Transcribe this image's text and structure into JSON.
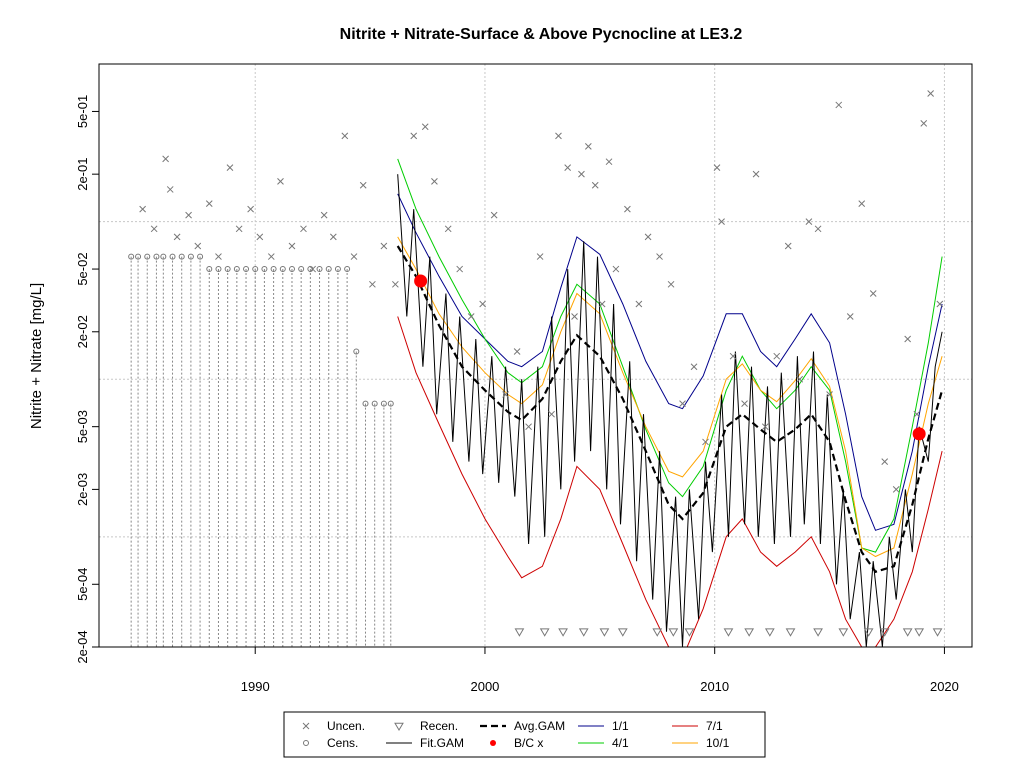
{
  "chart_data": {
    "type": "scatter",
    "title": "Nitrite + Nitrate-Surface & Above Pycnocline at LE3.2",
    "ylabel": "Nitrite + Nitrate [mg/L]",
    "xlabel": "",
    "y_scale": "log",
    "xlim": [
      1983.2,
      2021.2
    ],
    "ylim": [
      0.0002,
      1.0
    ],
    "x_ticks": [
      1990,
      2000,
      2010,
      2020
    ],
    "x_tick_labels": [
      "1990",
      "2000",
      "2010",
      "2020"
    ],
    "y_ticks": [
      0.0002,
      0.0005,
      0.002,
      0.005,
      0.02,
      0.05,
      0.2,
      0.5
    ],
    "y_tick_labels": [
      "2e-04",
      "5e-04",
      "2e-03",
      "5e-03",
      "2e-02",
      "5e-02",
      "2e-01",
      "5e-01"
    ],
    "y_grid": [
      0.001,
      0.01,
      0.1
    ],
    "x_grid": [
      1990,
      2000,
      2010,
      2020
    ],
    "grid": true,
    "legend_position": "bottom",
    "legend": [
      {
        "label": "Uncen.",
        "symbol": "x",
        "color": "#777777"
      },
      {
        "label": "Cens.",
        "symbol": "circle",
        "color": "#777777"
      },
      {
        "label": "Recen.",
        "symbol": "triangle-down",
        "color": "#777777"
      },
      {
        "label": "Fit.GAM",
        "symbol": "line",
        "color": "#000000"
      },
      {
        "label": "Avg.GAM",
        "symbol": "dashed",
        "color": "#000000"
      },
      {
        "label": "B/C x",
        "symbol": "dot",
        "color": "#ff0000"
      },
      {
        "label": "1/1",
        "symbol": "line",
        "color": "#00008b"
      },
      {
        "label": "4/1",
        "symbol": "line",
        "color": "#00cd00"
      },
      {
        "label": "7/1",
        "symbol": "line",
        "color": "#cd0000"
      },
      {
        "label": "10/1",
        "symbol": "line",
        "color": "#ffa500"
      }
    ],
    "series": [
      {
        "name": "Avg.GAM",
        "color": "#000000",
        "style": "dashed",
        "x": [
          1996.2,
          1997.0,
          1998.0,
          1999.0,
          2000.0,
          2001.0,
          2001.6,
          2002.5,
          2003.3,
          2004.0,
          2005.0,
          2006.0,
          2007.0,
          2008.0,
          2008.6,
          2009.5,
          2010.5,
          2011.2,
          2012.0,
          2012.7,
          2013.5,
          2014.2,
          2015.0,
          2015.7,
          2016.4,
          2017.0,
          2017.8,
          2018.6,
          2019.3,
          2019.9
        ],
        "y": [
          0.07,
          0.045,
          0.022,
          0.012,
          0.0085,
          0.0062,
          0.0055,
          0.0075,
          0.013,
          0.019,
          0.014,
          0.0075,
          0.0035,
          0.0016,
          0.0013,
          0.0019,
          0.005,
          0.006,
          0.0048,
          0.004,
          0.0048,
          0.006,
          0.004,
          0.0017,
          0.0008,
          0.0006,
          0.00065,
          0.0016,
          0.0042,
          0.0085
        ]
      },
      {
        "name": "1/1",
        "color": "#00008b",
        "style": "solid",
        "x": [
          1996.2,
          1997.0,
          1998.0,
          1999.0,
          2000.0,
          2001.0,
          2001.6,
          2002.5,
          2003.3,
          2004.0,
          2005.0,
          2006.0,
          2007.0,
          2008.0,
          2008.6,
          2009.5,
          2010.5,
          2011.2,
          2012.0,
          2012.7,
          2013.5,
          2014.2,
          2015.0,
          2015.7,
          2016.4,
          2017.0,
          2017.8,
          2018.6,
          2019.3,
          2019.9
        ],
        "y": [
          0.15,
          0.085,
          0.045,
          0.025,
          0.018,
          0.013,
          0.012,
          0.015,
          0.038,
          0.08,
          0.062,
          0.03,
          0.013,
          0.007,
          0.0065,
          0.0105,
          0.026,
          0.026,
          0.015,
          0.012,
          0.018,
          0.026,
          0.017,
          0.006,
          0.0018,
          0.0011,
          0.0012,
          0.0035,
          0.012,
          0.03
        ]
      },
      {
        "name": "4/1",
        "color": "#00cd00",
        "style": "solid",
        "x": [
          1996.2,
          1997.0,
          1998.0,
          1999.0,
          2000.0,
          2001.0,
          2001.6,
          2002.5,
          2003.3,
          2004.0,
          2005.0,
          2006.0,
          2007.0,
          2008.0,
          2008.6,
          2009.5,
          2010.5,
          2011.2,
          2012.0,
          2012.7,
          2013.5,
          2014.2,
          2015.0,
          2015.7,
          2016.4,
          2017.0,
          2017.8,
          2018.6,
          2019.3,
          2019.9
        ],
        "y": [
          0.25,
          0.12,
          0.06,
          0.032,
          0.018,
          0.011,
          0.0095,
          0.012,
          0.025,
          0.04,
          0.03,
          0.012,
          0.0048,
          0.0022,
          0.0018,
          0.0028,
          0.0085,
          0.014,
          0.0085,
          0.0065,
          0.0085,
          0.012,
          0.0085,
          0.003,
          0.00085,
          0.0008,
          0.0013,
          0.005,
          0.017,
          0.06
        ]
      },
      {
        "name": "7/1",
        "color": "#cd0000",
        "style": "solid",
        "x": [
          1996.2,
          1997.0,
          1998.0,
          1999.0,
          2000.0,
          2001.0,
          2001.6,
          2002.5,
          2003.3,
          2004.0,
          2005.0,
          2006.0,
          2007.0,
          2008.0,
          2008.6,
          2009.5,
          2010.5,
          2011.2,
          2012.0,
          2012.7,
          2013.5,
          2014.2,
          2015.0,
          2015.7,
          2016.4,
          2017.0,
          2017.8,
          2018.6,
          2019.3,
          2019.9
        ],
        "y": [
          0.025,
          0.011,
          0.0052,
          0.0025,
          0.0013,
          0.00075,
          0.00055,
          0.00065,
          0.0013,
          0.0028,
          0.002,
          0.0009,
          0.0004,
          0.0002,
          0.00017,
          0.00035,
          0.001,
          0.0013,
          0.0008,
          0.00065,
          0.0008,
          0.001,
          0.0006,
          0.0003,
          0.0002,
          0.0002,
          0.0003,
          0.0006,
          0.0015,
          0.0035
        ]
      },
      {
        "name": "10/1",
        "color": "#ffa500",
        "style": "solid",
        "x": [
          1996.2,
          1997.0,
          1998.0,
          1999.0,
          2000.0,
          2001.0,
          2001.6,
          2002.5,
          2003.3,
          2004.0,
          2005.0,
          2006.0,
          2007.0,
          2008.0,
          2008.6,
          2009.5,
          2010.5,
          2011.2,
          2012.0,
          2012.7,
          2013.5,
          2014.2,
          2015.0,
          2015.7,
          2016.4,
          2017.0,
          2017.8,
          2018.6,
          2019.3,
          2019.9
        ],
        "y": [
          0.08,
          0.05,
          0.026,
          0.016,
          0.011,
          0.008,
          0.007,
          0.0092,
          0.02,
          0.035,
          0.026,
          0.011,
          0.005,
          0.0026,
          0.0024,
          0.0035,
          0.01,
          0.0125,
          0.0085,
          0.0072,
          0.0098,
          0.0135,
          0.009,
          0.0035,
          0.00085,
          0.00075,
          0.00085,
          0.0025,
          0.007,
          0.014
        ]
      },
      {
        "name": "Fit.GAM",
        "color": "#000000",
        "style": "solid",
        "x": [
          1996.2,
          1996.6,
          1996.9,
          1997.3,
          1997.6,
          1997.9,
          1998.3,
          1998.6,
          1998.9,
          1999.3,
          1999.6,
          1999.9,
          2000.3,
          2000.6,
          2000.9,
          2001.3,
          2001.6,
          2001.9,
          2002.3,
          2002.6,
          2002.9,
          2003.3,
          2003.6,
          2003.9,
          2004.3,
          2004.6,
          2004.9,
          2005.3,
          2005.6,
          2005.9,
          2006.3,
          2006.6,
          2006.9,
          2007.3,
          2007.6,
          2007.9,
          2008.3,
          2008.6,
          2008.9,
          2009.3,
          2009.6,
          2009.9,
          2010.3,
          2010.6,
          2010.9,
          2011.3,
          2011.6,
          2011.9,
          2012.3,
          2012.6,
          2012.9,
          2013.3,
          2013.6,
          2013.9,
          2014.3,
          2014.6,
          2014.9,
          2015.3,
          2015.6,
          2015.9,
          2016.3,
          2016.6,
          2016.9,
          2017.3,
          2017.6,
          2017.9,
          2018.3,
          2018.6,
          2018.9,
          2019.3,
          2019.6,
          2019.9
        ],
        "y": [
          0.2,
          0.025,
          0.12,
          0.012,
          0.06,
          0.006,
          0.035,
          0.004,
          0.025,
          0.003,
          0.018,
          0.0025,
          0.014,
          0.0022,
          0.012,
          0.0018,
          0.01,
          0.0009,
          0.012,
          0.001,
          0.025,
          0.002,
          0.05,
          0.003,
          0.075,
          0.0035,
          0.06,
          0.002,
          0.03,
          0.0012,
          0.013,
          0.0007,
          0.006,
          0.0004,
          0.0035,
          0.00025,
          0.0018,
          0.0002,
          0.002,
          0.0003,
          0.003,
          0.0008,
          0.008,
          0.001,
          0.015,
          0.0012,
          0.012,
          0.001,
          0.009,
          0.0009,
          0.011,
          0.001,
          0.014,
          0.0012,
          0.015,
          0.0009,
          0.008,
          0.0005,
          0.002,
          0.0003,
          0.0008,
          0.0002,
          0.0007,
          0.0002,
          0.001,
          0.0004,
          0.002,
          0.0008,
          0.005,
          0.003,
          0.012,
          0.02
        ]
      },
      {
        "name": "Uncen.",
        "color": "#777777",
        "style": "x",
        "x": [
          1985.1,
          1985.6,
          1986.1,
          1986.3,
          1986.6,
          1987.1,
          1987.5,
          1988.0,
          1988.4,
          1988.9,
          1989.3,
          1989.8,
          1990.2,
          1990.7,
          1991.1,
          1991.6,
          1992.1,
          1992.5,
          1993.0,
          1993.4,
          1993.9,
          1994.3,
          1994.7,
          1995.1,
          1995.6,
          1996.1,
          1996.9,
          1997.4,
          1997.8,
          1998.4,
          1998.9,
          1999.4,
          1999.9,
          2000.4,
          2000.9,
          2001.4,
          2001.9,
          2002.4,
          2002.9,
          2003.2,
          2003.6,
          2003.9,
          2004.2,
          2004.5,
          2004.8,
          2005.1,
          2005.4,
          2005.7,
          2006.2,
          2006.7,
          2007.1,
          2007.6,
          2008.1,
          2008.6,
          2009.1,
          2009.6,
          2010.1,
          2010.3,
          2010.8,
          2011.3,
          2011.8,
          2012.2,
          2012.7,
          2013.2,
          2013.7,
          2014.1,
          2014.5,
          2015.0,
          2015.4,
          2015.9,
          2016.4,
          2016.9,
          2017.4,
          2017.9,
          2018.4,
          2018.8,
          2019.1,
          2019.4,
          2019.8
        ],
        "y": [
          0.12,
          0.09,
          0.25,
          0.16,
          0.08,
          0.11,
          0.07,
          0.13,
          0.06,
          0.22,
          0.09,
          0.12,
          0.08,
          0.06,
          0.18,
          0.07,
          0.09,
          0.05,
          0.11,
          0.08,
          0.35,
          0.06,
          0.17,
          0.04,
          0.07,
          0.04,
          0.35,
          0.4,
          0.18,
          0.09,
          0.05,
          0.025,
          0.03,
          0.11,
          0.008,
          0.015,
          0.005,
          0.06,
          0.006,
          0.35,
          0.22,
          0.025,
          0.2,
          0.3,
          0.17,
          0.03,
          0.24,
          0.05,
          0.12,
          0.03,
          0.08,
          0.06,
          0.04,
          0.007,
          0.012,
          0.004,
          0.22,
          0.1,
          0.014,
          0.007,
          0.2,
          0.005,
          0.014,
          0.07,
          0.01,
          0.1,
          0.09,
          0.008,
          0.55,
          0.025,
          0.13,
          0.035,
          0.003,
          0.002,
          0.018,
          0.006,
          0.42,
          0.65,
          0.03
        ]
      },
      {
        "name": "Cens.",
        "color": "#777777",
        "style": "circle",
        "x": [
          1984.6,
          1984.9,
          1985.3,
          1985.7,
          1986.0,
          1986.4,
          1986.8,
          1987.2,
          1987.6,
          1988.0,
          1988.4,
          1988.8,
          1989.2,
          1989.6,
          1990.0,
          1990.4,
          1990.8,
          1991.2,
          1991.6,
          1992.0,
          1992.4,
          1992.8,
          1993.2,
          1993.6,
          1994.0,
          1994.4,
          1994.8,
          1995.2,
          1995.6,
          1995.9
        ],
        "y": [
          0.06,
          0.06,
          0.06,
          0.06,
          0.06,
          0.06,
          0.06,
          0.06,
          0.06,
          0.05,
          0.05,
          0.05,
          0.05,
          0.05,
          0.05,
          0.05,
          0.05,
          0.05,
          0.05,
          0.05,
          0.05,
          0.05,
          0.05,
          0.05,
          0.05,
          0.015,
          0.007,
          0.007,
          0.007,
          0.007
        ]
      },
      {
        "name": "Recen.",
        "color": "#777777",
        "style": "triangle",
        "x": [
          2001.5,
          2002.6,
          2003.4,
          2004.3,
          2005.2,
          2006.0,
          2007.5,
          2008.2,
          2008.9,
          2010.6,
          2011.5,
          2012.4,
          2013.3,
          2014.5,
          2015.6,
          2016.7,
          2017.4,
          2018.4,
          2018.9,
          2019.7
        ],
        "y": [
          0.00025,
          0.00025,
          0.00025,
          0.00025,
          0.00025,
          0.00025,
          0.00025,
          0.00025,
          0.00025,
          0.00025,
          0.00025,
          0.00025,
          0.00025,
          0.00025,
          0.00025,
          0.00025,
          0.00025,
          0.00025,
          0.00025,
          0.00025
        ]
      },
      {
        "name": "B/C x",
        "color": "#ff0000",
        "style": "dot",
        "x": [
          1997.2,
          2018.9
        ],
        "y": [
          0.042,
          0.0045
        ]
      }
    ]
  }
}
